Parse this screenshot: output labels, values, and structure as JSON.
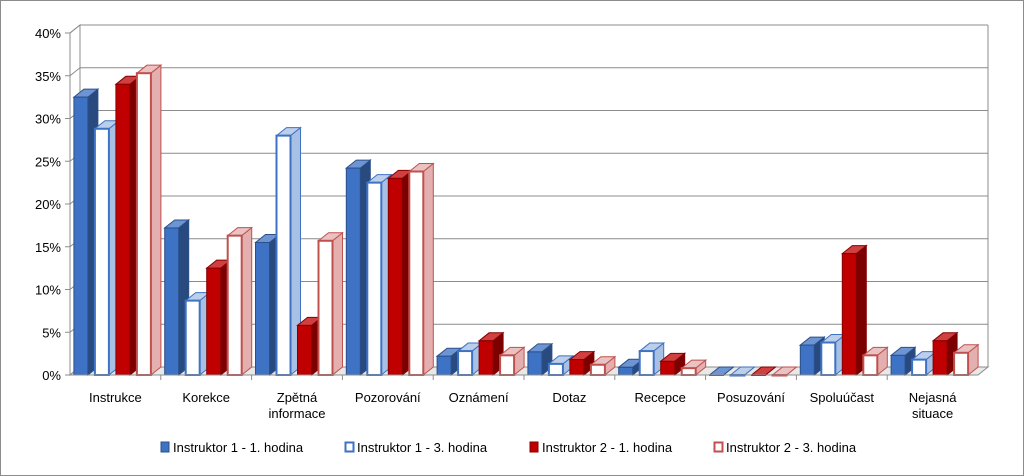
{
  "chart_data": {
    "type": "bar",
    "categories": [
      [
        "Instrukce"
      ],
      [
        "Korekce"
      ],
      [
        "Zpětná",
        "informace"
      ],
      [
        "Pozorování"
      ],
      [
        "Oznámení"
      ],
      [
        "Dotaz"
      ],
      [
        "Recepce"
      ],
      [
        "Posuzování"
      ],
      [
        "Spoluúčast"
      ],
      [
        "Nejasná",
        "situace"
      ]
    ],
    "ylim": [
      0,
      0.4
    ],
    "yticks": [
      "0%",
      "5%",
      "10%",
      "15%",
      "20%",
      "25%",
      "30%",
      "35%",
      "40%"
    ],
    "ytick_values": [
      0,
      0.05,
      0.1,
      0.15,
      0.2,
      0.25,
      0.3,
      0.35,
      0.4
    ],
    "grid": true,
    "legend_position": "bottom",
    "series": [
      {
        "name": "Instruktor 1 - 1. hodina",
        "style": "filled",
        "color": "#3d72c4",
        "values": [
          0.325,
          0.172,
          0.155,
          0.242,
          0.022,
          0.027,
          0.009,
          0.0,
          0.035,
          0.023
        ]
      },
      {
        "name": "Instruktor 1 - 3. hodina",
        "style": "outline",
        "color": "#3d72c4",
        "values": [
          0.288,
          0.087,
          0.28,
          0.225,
          0.028,
          0.013,
          0.028,
          0.0,
          0.038,
          0.018
        ]
      },
      {
        "name": "Instruktor 2 - 1. hodina",
        "style": "filled",
        "color": "#c00000",
        "values": [
          0.34,
          0.125,
          0.058,
          0.23,
          0.04,
          0.018,
          0.016,
          0.0,
          0.142,
          0.04
        ]
      },
      {
        "name": "Instruktor 2 - 3. hodina",
        "style": "outline",
        "color": "#c0504d",
        "values": [
          0.353,
          0.163,
          0.157,
          0.238,
          0.023,
          0.012,
          0.008,
          0.0,
          0.023,
          0.026
        ]
      }
    ]
  }
}
